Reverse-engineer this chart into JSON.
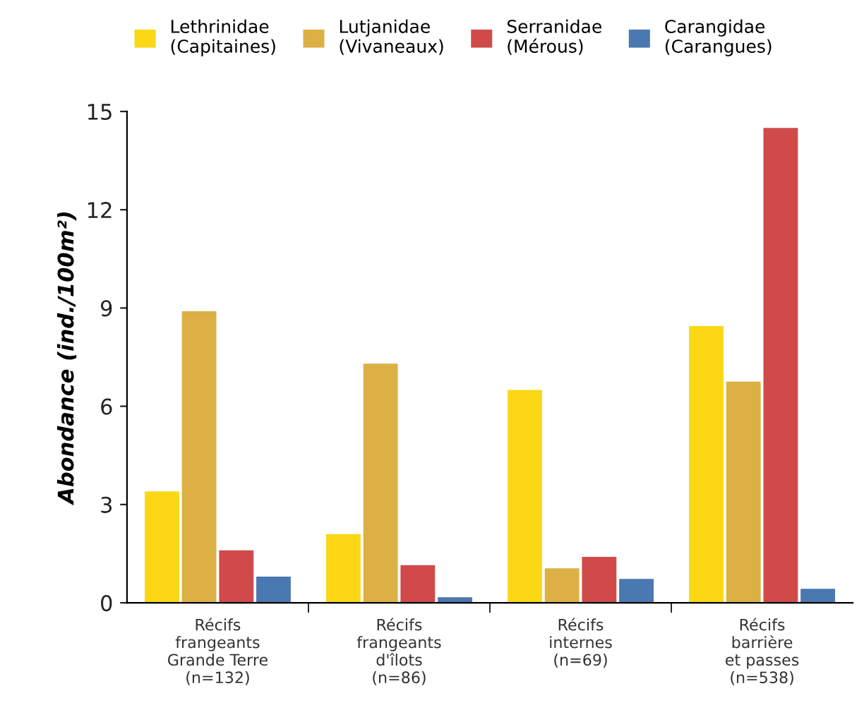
{
  "chart_data": {
    "type": "bar",
    "ylabel": "Abondance (ind./100m²)",
    "categories": [
      "Récifs\nfrangeants\nGrande Terre\n(n=132)",
      "Récifs\nfrangeants\nd'îlots\n(n=86)",
      "Récifs\ninternes\n(n=69)",
      "Récifs\nbarrière\net passes\n(n=538)"
    ],
    "series": [
      {
        "name": "Lethrinidae\n(Capitaines)",
        "color": "#fcd716",
        "values": [
          3.4,
          2.1,
          6.5,
          8.45
        ]
      },
      {
        "name": "Lutjanidae\n(Vivaneaux)",
        "color": "#dcb044",
        "values": [
          8.9,
          7.3,
          1.05,
          6.75
        ]
      },
      {
        "name": "Serranidae\n(Mérous)",
        "color": "#d04a4a",
        "values": [
          1.6,
          1.15,
          1.4,
          14.5
        ]
      },
      {
        "name": "Carangidae\n(Carangues)",
        "color": "#4a78b0",
        "values": [
          0.8,
          0.17,
          0.73,
          0.43
        ]
      }
    ],
    "ylim": [
      0,
      15
    ],
    "yticks": [
      0,
      3,
      6,
      9,
      12,
      15
    ],
    "grid": false,
    "legend": "top"
  }
}
